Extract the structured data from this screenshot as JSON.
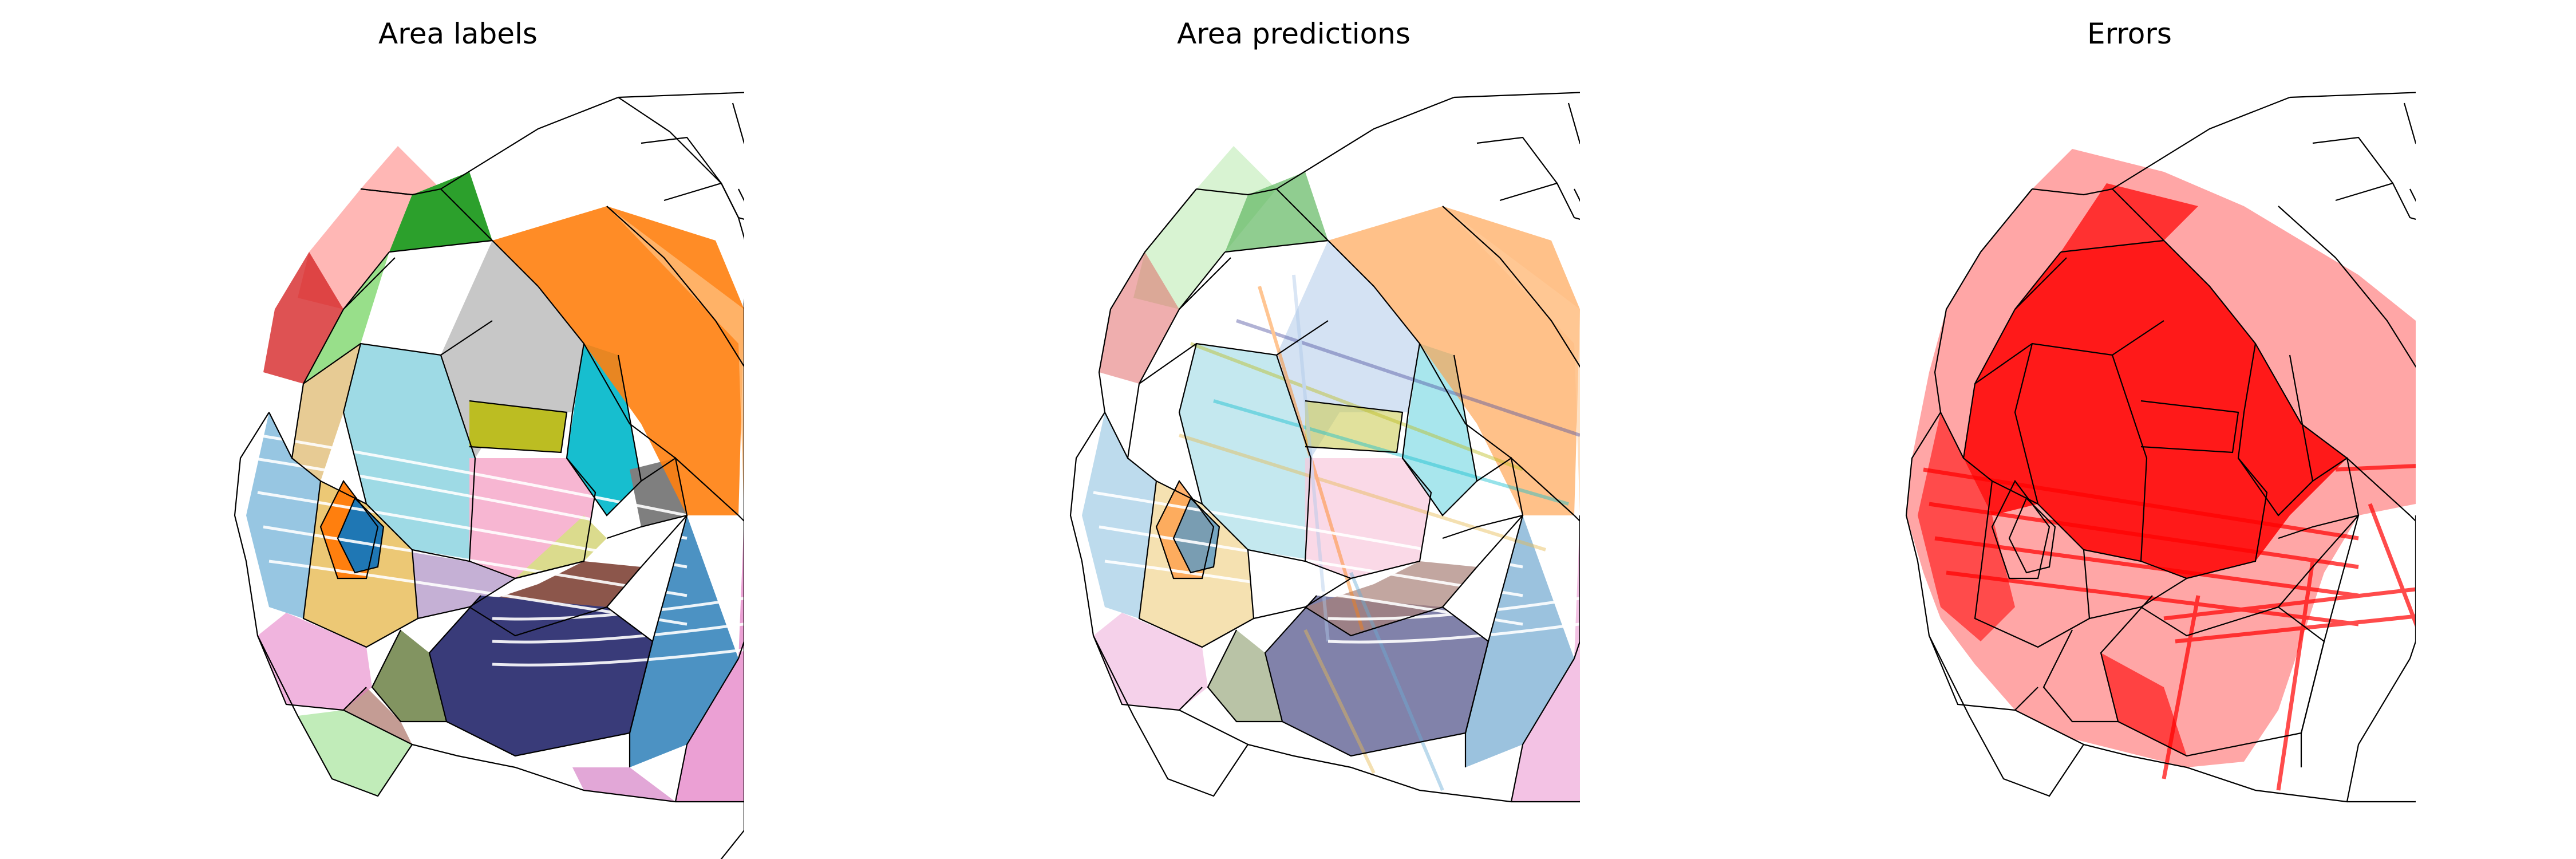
{
  "panels": [
    {
      "title": "Area labels"
    },
    {
      "title": "Area predictions"
    },
    {
      "title": "Errors"
    }
  ],
  "colors": {
    "outline": "#000000",
    "error": "#ff0000",
    "area_palette": [
      "#1f77b4",
      "#ff7f0e",
      "#2ca02c",
      "#d62728",
      "#9467bd",
      "#8c564b",
      "#e377c2",
      "#7f7f7f",
      "#bcbd22",
      "#17becf",
      "#aec7e8",
      "#ffbb78",
      "#98df8a",
      "#ff9896",
      "#c5b0d5",
      "#c49c94",
      "#f7b6d2",
      "#c7c7c7",
      "#dbdb8d",
      "#9edae5",
      "#393b79",
      "#5254a3",
      "#637939",
      "#8c6d31",
      "#843c39",
      "#ce6dbd",
      "#e7ba52"
    ]
  }
}
